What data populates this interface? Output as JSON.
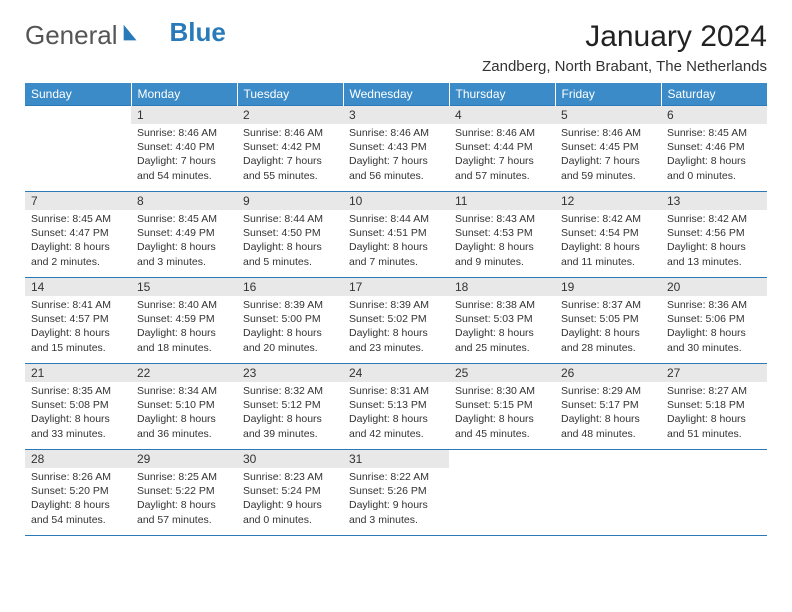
{
  "brand": {
    "part1": "General",
    "part2": "Blue"
  },
  "title": "January 2024",
  "location": "Zandberg, North Brabant, The Netherlands",
  "colors": {
    "header_bg": "#3b8bc9",
    "border": "#2a7ab9",
    "daynum_bg": "#e8e8e8",
    "text": "#333333"
  },
  "weekdays": [
    "Sunday",
    "Monday",
    "Tuesday",
    "Wednesday",
    "Thursday",
    "Friday",
    "Saturday"
  ],
  "weeks": [
    [
      {
        "n": "",
        "l1": "",
        "l2": "",
        "l3": "",
        "l4": ""
      },
      {
        "n": "1",
        "l1": "Sunrise: 8:46 AM",
        "l2": "Sunset: 4:40 PM",
        "l3": "Daylight: 7 hours",
        "l4": "and 54 minutes."
      },
      {
        "n": "2",
        "l1": "Sunrise: 8:46 AM",
        "l2": "Sunset: 4:42 PM",
        "l3": "Daylight: 7 hours",
        "l4": "and 55 minutes."
      },
      {
        "n": "3",
        "l1": "Sunrise: 8:46 AM",
        "l2": "Sunset: 4:43 PM",
        "l3": "Daylight: 7 hours",
        "l4": "and 56 minutes."
      },
      {
        "n": "4",
        "l1": "Sunrise: 8:46 AM",
        "l2": "Sunset: 4:44 PM",
        "l3": "Daylight: 7 hours",
        "l4": "and 57 minutes."
      },
      {
        "n": "5",
        "l1": "Sunrise: 8:46 AM",
        "l2": "Sunset: 4:45 PM",
        "l3": "Daylight: 7 hours",
        "l4": "and 59 minutes."
      },
      {
        "n": "6",
        "l1": "Sunrise: 8:45 AM",
        "l2": "Sunset: 4:46 PM",
        "l3": "Daylight: 8 hours",
        "l4": "and 0 minutes."
      }
    ],
    [
      {
        "n": "7",
        "l1": "Sunrise: 8:45 AM",
        "l2": "Sunset: 4:47 PM",
        "l3": "Daylight: 8 hours",
        "l4": "and 2 minutes."
      },
      {
        "n": "8",
        "l1": "Sunrise: 8:45 AM",
        "l2": "Sunset: 4:49 PM",
        "l3": "Daylight: 8 hours",
        "l4": "and 3 minutes."
      },
      {
        "n": "9",
        "l1": "Sunrise: 8:44 AM",
        "l2": "Sunset: 4:50 PM",
        "l3": "Daylight: 8 hours",
        "l4": "and 5 minutes."
      },
      {
        "n": "10",
        "l1": "Sunrise: 8:44 AM",
        "l2": "Sunset: 4:51 PM",
        "l3": "Daylight: 8 hours",
        "l4": "and 7 minutes."
      },
      {
        "n": "11",
        "l1": "Sunrise: 8:43 AM",
        "l2": "Sunset: 4:53 PM",
        "l3": "Daylight: 8 hours",
        "l4": "and 9 minutes."
      },
      {
        "n": "12",
        "l1": "Sunrise: 8:42 AM",
        "l2": "Sunset: 4:54 PM",
        "l3": "Daylight: 8 hours",
        "l4": "and 11 minutes."
      },
      {
        "n": "13",
        "l1": "Sunrise: 8:42 AM",
        "l2": "Sunset: 4:56 PM",
        "l3": "Daylight: 8 hours",
        "l4": "and 13 minutes."
      }
    ],
    [
      {
        "n": "14",
        "l1": "Sunrise: 8:41 AM",
        "l2": "Sunset: 4:57 PM",
        "l3": "Daylight: 8 hours",
        "l4": "and 15 minutes."
      },
      {
        "n": "15",
        "l1": "Sunrise: 8:40 AM",
        "l2": "Sunset: 4:59 PM",
        "l3": "Daylight: 8 hours",
        "l4": "and 18 minutes."
      },
      {
        "n": "16",
        "l1": "Sunrise: 8:39 AM",
        "l2": "Sunset: 5:00 PM",
        "l3": "Daylight: 8 hours",
        "l4": "and 20 minutes."
      },
      {
        "n": "17",
        "l1": "Sunrise: 8:39 AM",
        "l2": "Sunset: 5:02 PM",
        "l3": "Daylight: 8 hours",
        "l4": "and 23 minutes."
      },
      {
        "n": "18",
        "l1": "Sunrise: 8:38 AM",
        "l2": "Sunset: 5:03 PM",
        "l3": "Daylight: 8 hours",
        "l4": "and 25 minutes."
      },
      {
        "n": "19",
        "l1": "Sunrise: 8:37 AM",
        "l2": "Sunset: 5:05 PM",
        "l3": "Daylight: 8 hours",
        "l4": "and 28 minutes."
      },
      {
        "n": "20",
        "l1": "Sunrise: 8:36 AM",
        "l2": "Sunset: 5:06 PM",
        "l3": "Daylight: 8 hours",
        "l4": "and 30 minutes."
      }
    ],
    [
      {
        "n": "21",
        "l1": "Sunrise: 8:35 AM",
        "l2": "Sunset: 5:08 PM",
        "l3": "Daylight: 8 hours",
        "l4": "and 33 minutes."
      },
      {
        "n": "22",
        "l1": "Sunrise: 8:34 AM",
        "l2": "Sunset: 5:10 PM",
        "l3": "Daylight: 8 hours",
        "l4": "and 36 minutes."
      },
      {
        "n": "23",
        "l1": "Sunrise: 8:32 AM",
        "l2": "Sunset: 5:12 PM",
        "l3": "Daylight: 8 hours",
        "l4": "and 39 minutes."
      },
      {
        "n": "24",
        "l1": "Sunrise: 8:31 AM",
        "l2": "Sunset: 5:13 PM",
        "l3": "Daylight: 8 hours",
        "l4": "and 42 minutes."
      },
      {
        "n": "25",
        "l1": "Sunrise: 8:30 AM",
        "l2": "Sunset: 5:15 PM",
        "l3": "Daylight: 8 hours",
        "l4": "and 45 minutes."
      },
      {
        "n": "26",
        "l1": "Sunrise: 8:29 AM",
        "l2": "Sunset: 5:17 PM",
        "l3": "Daylight: 8 hours",
        "l4": "and 48 minutes."
      },
      {
        "n": "27",
        "l1": "Sunrise: 8:27 AM",
        "l2": "Sunset: 5:18 PM",
        "l3": "Daylight: 8 hours",
        "l4": "and 51 minutes."
      }
    ],
    [
      {
        "n": "28",
        "l1": "Sunrise: 8:26 AM",
        "l2": "Sunset: 5:20 PM",
        "l3": "Daylight: 8 hours",
        "l4": "and 54 minutes."
      },
      {
        "n": "29",
        "l1": "Sunrise: 8:25 AM",
        "l2": "Sunset: 5:22 PM",
        "l3": "Daylight: 8 hours",
        "l4": "and 57 minutes."
      },
      {
        "n": "30",
        "l1": "Sunrise: 8:23 AM",
        "l2": "Sunset: 5:24 PM",
        "l3": "Daylight: 9 hours",
        "l4": "and 0 minutes."
      },
      {
        "n": "31",
        "l1": "Sunrise: 8:22 AM",
        "l2": "Sunset: 5:26 PM",
        "l3": "Daylight: 9 hours",
        "l4": "and 3 minutes."
      },
      {
        "n": "",
        "l1": "",
        "l2": "",
        "l3": "",
        "l4": ""
      },
      {
        "n": "",
        "l1": "",
        "l2": "",
        "l3": "",
        "l4": ""
      },
      {
        "n": "",
        "l1": "",
        "l2": "",
        "l3": "",
        "l4": ""
      }
    ]
  ]
}
